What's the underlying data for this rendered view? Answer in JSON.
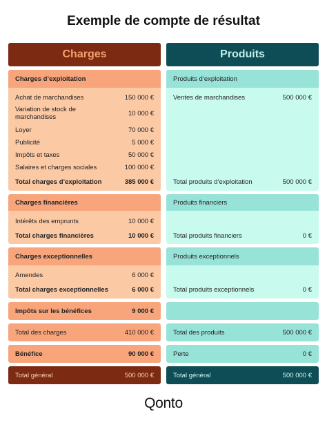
{
  "title": "Exemple de compte de résultat",
  "headers": {
    "charges": "Charges",
    "produits": "Produits"
  },
  "exploitation": {
    "charges_title": "Charges d’exploitation",
    "produits_title": "Produits d’exploitation",
    "charges_items": [
      {
        "label": "Achat de marchandises",
        "value": "150 000 €"
      },
      {
        "label": "Variation de stock de marchandises",
        "value": "10 000 €"
      },
      {
        "label": "Loyer",
        "value": "70 000 €"
      },
      {
        "label": "Publicité",
        "value": "5 000 €"
      },
      {
        "label": "Impôts et taxes",
        "value": "50 000 €"
      },
      {
        "label": "Salaires et charges sociales",
        "value": "100 000 €"
      }
    ],
    "produits_items": [
      {
        "label": "Ventes de marchandises",
        "value": "500 000 €"
      }
    ],
    "charges_total": {
      "label": "Total charges d’exploitation",
      "value": "385 000 €"
    },
    "produits_total": {
      "label": "Total produits d’exploitation",
      "value": "500 000 €"
    }
  },
  "financier": {
    "charges_title": "Charges financières",
    "produits_title": "Produits financiers",
    "charges_items": [
      {
        "label": "Intérêts des emprunts",
        "value": "10 000 €"
      }
    ],
    "charges_total": {
      "label": "Total charges financières",
      "value": "10 000 €"
    },
    "produits_total": {
      "label": "Total produits financiers",
      "value": "0 €"
    }
  },
  "exceptionnel": {
    "charges_title": "Charges exceptionnelles",
    "produits_title": "Produits exceptionnels",
    "charges_items": [
      {
        "label": "Amendes",
        "value": "6 000 €"
      }
    ],
    "charges_total": {
      "label": "Total charges exceptionnelles",
      "value": "6 000 €"
    },
    "produits_total": {
      "label": "Total produits exceptionnels",
      "value": "0 €"
    }
  },
  "impots": {
    "label": "Impôts sur les bénéfices",
    "value": "9 000 €"
  },
  "totals": {
    "charges": {
      "label": "Total des charges",
      "value": "410 000 €"
    },
    "produits": {
      "label": "Total des produits",
      "value": "500 000 €"
    }
  },
  "resultat": {
    "benefice": {
      "label": "Bénéfice",
      "value": "90 000 €"
    },
    "perte": {
      "label": "Perte",
      "value": "0 €"
    }
  },
  "general": {
    "charges": {
      "label": "Total général",
      "value": "500 000 €"
    },
    "produits": {
      "label": "Total général",
      "value": "500 000 €"
    }
  },
  "logo": "Qonto",
  "colors": {
    "charges_header": "#7c2a12",
    "produits_header": "#0f4d56",
    "charges_light": "#fcc9a5",
    "charges_dark": "#f8a57c",
    "produits_light": "#c8fbee",
    "produits_dark": "#98e3d8"
  }
}
